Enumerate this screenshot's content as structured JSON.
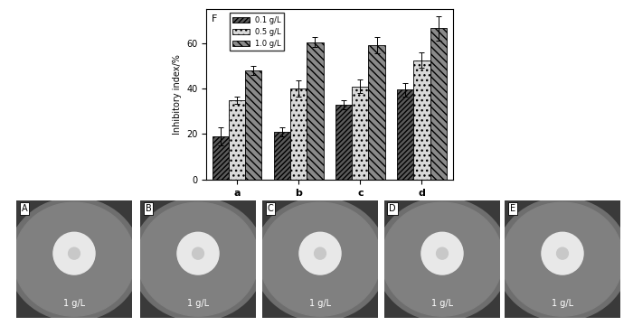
{
  "chart_data": {
    "type": "bar",
    "panel_label": "F",
    "y_label": "Inhibitory index/%",
    "categories": [
      "a",
      "b",
      "c",
      "d"
    ],
    "series": [
      {
        "name": "0.1 g/L",
        "color": "#5a5a5a",
        "values": [
          19,
          21,
          33,
          39.5
        ],
        "errors": [
          4,
          2,
          2,
          3
        ]
      },
      {
        "name": "0.5 g/L",
        "color": "#d8d8d8",
        "values": [
          35,
          40,
          41,
          52.5
        ],
        "errors": [
          1.5,
          3.5,
          3,
          3.5
        ]
      },
      {
        "name": "1.0 g/L",
        "color": "#8a8a8a",
        "values": [
          48,
          60.5,
          59,
          66.5
        ],
        "errors": [
          2,
          2,
          3.5,
          5.5
        ]
      }
    ],
    "ylim": [
      0,
      75
    ],
    "yticks": [
      0,
      20,
      40,
      60
    ],
    "grid": false,
    "legend": "upper left"
  },
  "photos": [
    {
      "label": "A",
      "text": "1 g/L"
    },
    {
      "label": "B",
      "text": "1 g/L"
    },
    {
      "label": "C",
      "text": "1 g/L"
    },
    {
      "label": "D",
      "text": "1 g/L"
    },
    {
      "label": "E",
      "text": "1 g/L"
    }
  ]
}
